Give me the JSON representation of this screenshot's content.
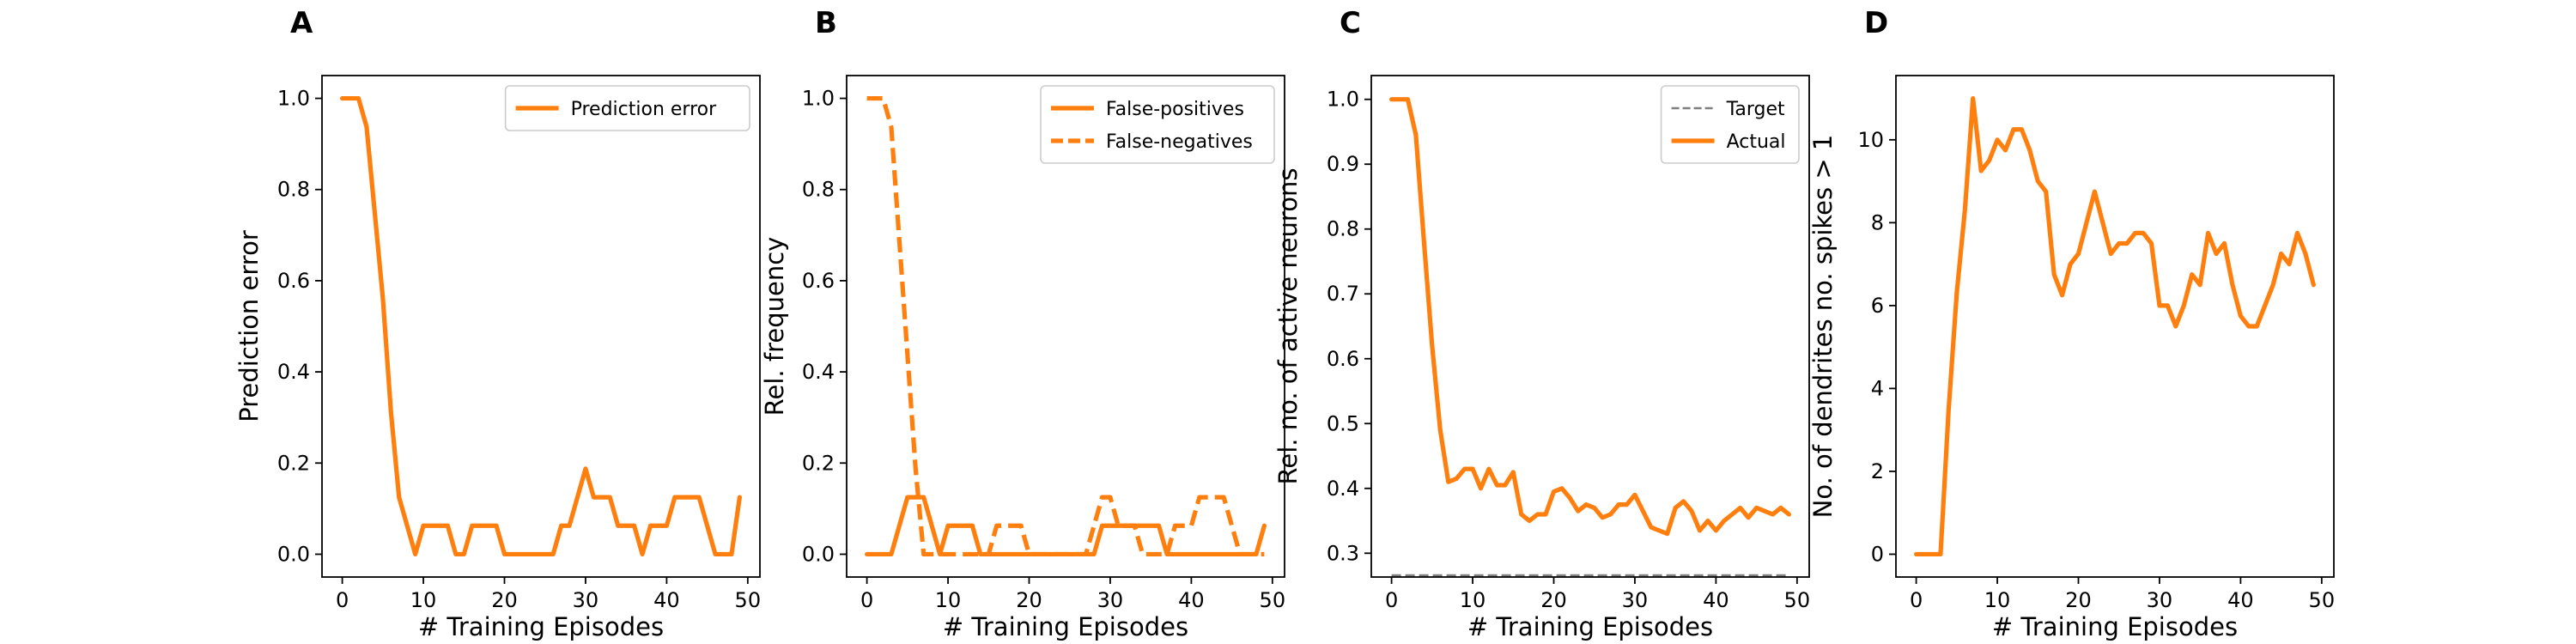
{
  "colors": {
    "orange": "#ff7f0e",
    "target": "#7f7f7f",
    "axes": "#000000",
    "legend_border": "#cccccc"
  },
  "chart_data": [
    {
      "type": "line",
      "panel_label": "A",
      "xlabel": "# Training Episodes",
      "ylabel": "Prediction error",
      "xlim": [
        -2.5,
        51.5
      ],
      "ylim": [
        -0.05,
        1.05
      ],
      "xticks": [
        0,
        10,
        20,
        30,
        40,
        50
      ],
      "xtick_labels": [
        "0",
        "10",
        "20",
        "30",
        "40",
        "50"
      ],
      "yticks": [
        0.0,
        0.2,
        0.4,
        0.6,
        0.8,
        1.0
      ],
      "ytick_labels": [
        "0.0",
        "0.2",
        "0.4",
        "0.6",
        "0.8",
        "1.0"
      ],
      "legend_position": "upper right",
      "grid": false,
      "series": [
        {
          "name": "Prediction error",
          "style": "solid",
          "color": "#ff7f0e",
          "x": [
            0,
            1,
            2,
            3,
            4,
            5,
            6,
            7,
            8,
            9,
            10,
            11,
            12,
            13,
            14,
            15,
            16,
            17,
            18,
            19,
            20,
            21,
            22,
            23,
            24,
            25,
            26,
            27,
            28,
            29,
            30,
            31,
            32,
            33,
            34,
            35,
            36,
            37,
            38,
            39,
            40,
            41,
            42,
            43,
            44,
            45,
            46,
            47,
            48,
            49
          ],
          "y": [
            1.0,
            1.0,
            1.0,
            0.9375,
            0.75,
            0.5625,
            0.3125,
            0.125,
            0.0625,
            0.0,
            0.0625,
            0.0625,
            0.0625,
            0.0625,
            0.0,
            0.0,
            0.0625,
            0.0625,
            0.0625,
            0.0625,
            0.0,
            0.0,
            0.0,
            0.0,
            0.0,
            0.0,
            0.0,
            0.0625,
            0.0625,
            0.125,
            0.1875,
            0.125,
            0.125,
            0.125,
            0.0625,
            0.0625,
            0.0625,
            0.0,
            0.0625,
            0.0625,
            0.0625,
            0.125,
            0.125,
            0.125,
            0.125,
            0.0625,
            0.0,
            0.0,
            0.0,
            0.125
          ]
        }
      ]
    },
    {
      "type": "line",
      "panel_label": "B",
      "xlabel": "# Training Episodes",
      "ylabel": "Rel. frequency",
      "xlim": [
        -2.5,
        51.5
      ],
      "ylim": [
        -0.05,
        1.05
      ],
      "xticks": [
        0,
        10,
        20,
        30,
        40,
        50
      ],
      "xtick_labels": [
        "0",
        "10",
        "20",
        "30",
        "40",
        "50"
      ],
      "yticks": [
        0.0,
        0.2,
        0.4,
        0.6,
        0.8,
        1.0
      ],
      "ytick_labels": [
        "0.0",
        "0.2",
        "0.4",
        "0.6",
        "0.8",
        "1.0"
      ],
      "legend_position": "upper right",
      "grid": false,
      "series": [
        {
          "name": "False-positives",
          "style": "solid",
          "color": "#ff7f0e",
          "x": [
            0,
            1,
            2,
            3,
            4,
            5,
            6,
            7,
            8,
            9,
            10,
            11,
            12,
            13,
            14,
            15,
            16,
            17,
            18,
            19,
            20,
            21,
            22,
            23,
            24,
            25,
            26,
            27,
            28,
            29,
            30,
            31,
            32,
            33,
            34,
            35,
            36,
            37,
            38,
            39,
            40,
            41,
            42,
            43,
            44,
            45,
            46,
            47,
            48,
            49
          ],
          "y": [
            0.0,
            0.0,
            0.0,
            0.0,
            0.0625,
            0.125,
            0.125,
            0.125,
            0.0625,
            0.0,
            0.0625,
            0.0625,
            0.0625,
            0.0625,
            0.0,
            0.0,
            0.0,
            0.0,
            0.0,
            0.0,
            0.0,
            0.0,
            0.0,
            0.0,
            0.0,
            0.0,
            0.0,
            0.0,
            0.0,
            0.0625,
            0.0625,
            0.0625,
            0.0625,
            0.0625,
            0.0625,
            0.0625,
            0.0625,
            0.0,
            0.0,
            0.0,
            0.0,
            0.0,
            0.0,
            0.0,
            0.0,
            0.0,
            0.0,
            0.0,
            0.0,
            0.0625
          ]
        },
        {
          "name": "False-negatives",
          "style": "dashed",
          "color": "#ff7f0e",
          "x": [
            0,
            1,
            2,
            3,
            4,
            5,
            6,
            7,
            8,
            9,
            10,
            11,
            12,
            13,
            14,
            15,
            16,
            17,
            18,
            19,
            20,
            21,
            22,
            23,
            24,
            25,
            26,
            27,
            28,
            29,
            30,
            31,
            32,
            33,
            34,
            35,
            36,
            37,
            38,
            39,
            40,
            41,
            42,
            43,
            44,
            45,
            46,
            47,
            48,
            49
          ],
          "y": [
            1.0,
            1.0,
            1.0,
            0.9375,
            0.6875,
            0.4375,
            0.1875,
            0.0,
            0.0,
            0.0,
            0.0,
            0.0,
            0.0,
            0.0,
            0.0,
            0.0,
            0.0625,
            0.0625,
            0.0625,
            0.0625,
            0.0,
            0.0,
            0.0,
            0.0,
            0.0,
            0.0,
            0.0,
            0.0,
            0.0625,
            0.125,
            0.125,
            0.0625,
            0.0625,
            0.0625,
            0.0,
            0.0,
            0.0,
            0.0,
            0.0625,
            0.0625,
            0.0625,
            0.125,
            0.125,
            0.125,
            0.125,
            0.0625,
            0.0,
            0.0,
            0.0,
            0.0
          ]
        }
      ]
    },
    {
      "type": "line",
      "panel_label": "C",
      "xlabel": "# Training Episodes",
      "ylabel": "Rel. no. of active neurons",
      "xlim": [
        -2.5,
        51.5
      ],
      "ylim": [
        0.2633,
        1.0367
      ],
      "xticks": [
        0,
        10,
        20,
        30,
        40,
        50
      ],
      "xtick_labels": [
        "0",
        "10",
        "20",
        "30",
        "40",
        "50"
      ],
      "yticks": [
        0.3,
        0.4,
        0.5,
        0.6,
        0.7,
        0.8,
        0.9,
        1.0
      ],
      "ytick_labels": [
        "0.3",
        "0.4",
        "0.5",
        "0.6",
        "0.7",
        "0.8",
        "0.9",
        "1.0"
      ],
      "legend_position": "upper right",
      "grid": false,
      "series": [
        {
          "name": "Target",
          "style": "dashed",
          "color": "#7f7f7f",
          "x": [
            0,
            49
          ],
          "y": [
            0.266,
            0.266
          ]
        },
        {
          "name": "Actual",
          "style": "solid",
          "color": "#ff7f0e",
          "x": [
            0,
            1,
            2,
            3,
            4,
            5,
            6,
            7,
            8,
            9,
            10,
            11,
            12,
            13,
            14,
            15,
            16,
            17,
            18,
            19,
            20,
            21,
            22,
            23,
            24,
            25,
            26,
            27,
            28,
            29,
            30,
            31,
            32,
            33,
            34,
            35,
            36,
            37,
            38,
            39,
            40,
            41,
            42,
            43,
            44,
            45,
            46,
            47,
            48,
            49
          ],
          "y": [
            1.0,
            1.0,
            1.0,
            0.945,
            0.78,
            0.62,
            0.49,
            0.41,
            0.415,
            0.43,
            0.43,
            0.4,
            0.43,
            0.405,
            0.405,
            0.425,
            0.36,
            0.35,
            0.36,
            0.36,
            0.395,
            0.4,
            0.385,
            0.365,
            0.375,
            0.37,
            0.355,
            0.36,
            0.375,
            0.375,
            0.39,
            0.365,
            0.34,
            0.335,
            0.33,
            0.37,
            0.38,
            0.365,
            0.335,
            0.35,
            0.335,
            0.35,
            0.36,
            0.37,
            0.355,
            0.37,
            0.365,
            0.36,
            0.37,
            0.36
          ]
        }
      ]
    },
    {
      "type": "line",
      "panel_label": "D",
      "xlabel": "# Training Episodes",
      "ylabel": "No. of dendrites no. spikes > 1",
      "xlim": [
        -2.5,
        51.5
      ],
      "ylim": [
        -0.55,
        11.55
      ],
      "xticks": [
        0,
        10,
        20,
        30,
        40,
        50
      ],
      "xtick_labels": [
        "0",
        "10",
        "20",
        "30",
        "40",
        "50"
      ],
      "yticks": [
        0,
        2,
        4,
        6,
        8,
        10
      ],
      "ytick_labels": [
        "0",
        "2",
        "4",
        "6",
        "8",
        "10"
      ],
      "grid": false,
      "series": [
        {
          "style": "solid",
          "color": "#ff7f0e",
          "x": [
            0,
            1,
            2,
            3,
            4,
            5,
            6,
            7,
            8,
            9,
            10,
            11,
            12,
            13,
            14,
            15,
            16,
            17,
            18,
            19,
            20,
            21,
            22,
            23,
            24,
            25,
            26,
            27,
            28,
            29,
            30,
            31,
            32,
            33,
            34,
            35,
            36,
            37,
            38,
            39,
            40,
            41,
            42,
            43,
            44,
            45,
            46,
            47,
            48,
            49
          ],
          "y": [
            0,
            0,
            0,
            0,
            3.5,
            6.3,
            8.3,
            11.0,
            9.25,
            9.5,
            10.0,
            9.75,
            10.25,
            10.25,
            9.75,
            9.0,
            8.75,
            6.75,
            6.25,
            7.0,
            7.25,
            8.0,
            8.75,
            8.0,
            7.25,
            7.5,
            7.5,
            7.75,
            7.75,
            7.5,
            6.0,
            6.0,
            5.5,
            6.0,
            6.75,
            6.5,
            7.75,
            7.25,
            7.5,
            6.5,
            5.75,
            5.5,
            5.5,
            6.0,
            6.5,
            7.25,
            7.0,
            7.75,
            7.25,
            6.5
          ]
        }
      ]
    }
  ]
}
